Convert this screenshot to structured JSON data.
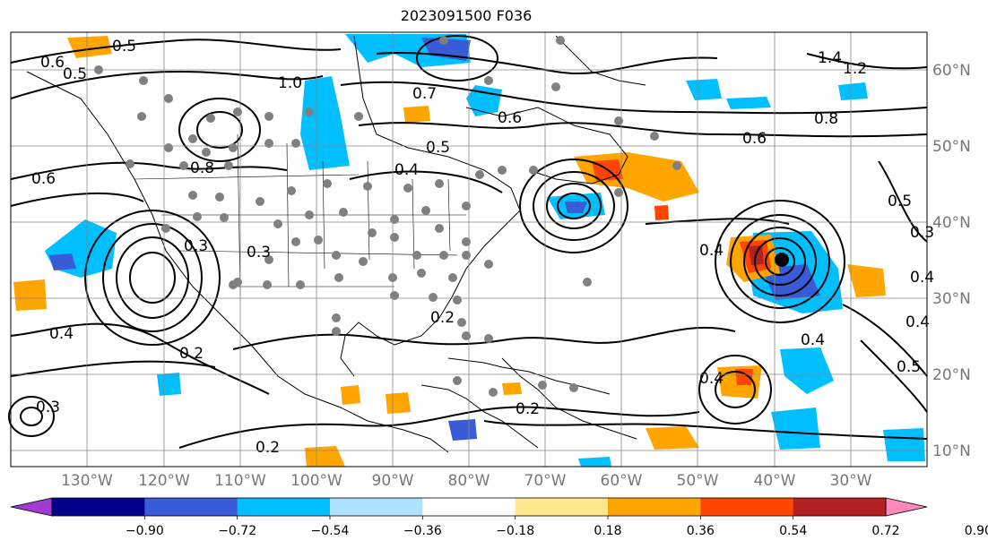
{
  "title": "2023091500 F036",
  "lat_labels": [
    "60°N",
    "50°N",
    "40°N",
    "30°N",
    "20°N",
    "10°N"
  ],
  "lon_labels": [
    "130°W",
    "120°W",
    "110°W",
    "100°W",
    "90°W",
    "80°W",
    "70°W",
    "60°W",
    "50°W",
    "40°W",
    "30°W"
  ],
  "contour_labels": [
    "0.5",
    "0.6",
    "0.5",
    "0.7",
    "0.6",
    "0.4",
    "1.4",
    "1.2",
    "0.8",
    "0.6",
    "0.5",
    "0.4",
    "0.4",
    "0.5",
    "0.3",
    "0.4",
    "0.2",
    "0.2",
    "0.4",
    "0.3",
    "0.3",
    "0.2",
    "0.4",
    "0.6",
    "0.5",
    "0.8",
    "0.3",
    "1.0",
    "0.4",
    "0.2"
  ],
  "colorbar": {
    "ticks": [
      "−0.90",
      "−0.72",
      "−0.54",
      "−0.36",
      "−0.18",
      "0.18",
      "0.36",
      "0.54",
      "0.72",
      "0.90"
    ],
    "colors": [
      "#a23bd1",
      "#00008b",
      "#3a5bd6",
      "#00bfff",
      "#b0e2ff",
      "#ffffff",
      "#ffe88c",
      "#ffa500",
      "#ff4500",
      "#b22222",
      "#ff88bb"
    ]
  },
  "colors": {
    "gridline": "#888888",
    "label": "#777777",
    "marker": "#808080"
  }
}
